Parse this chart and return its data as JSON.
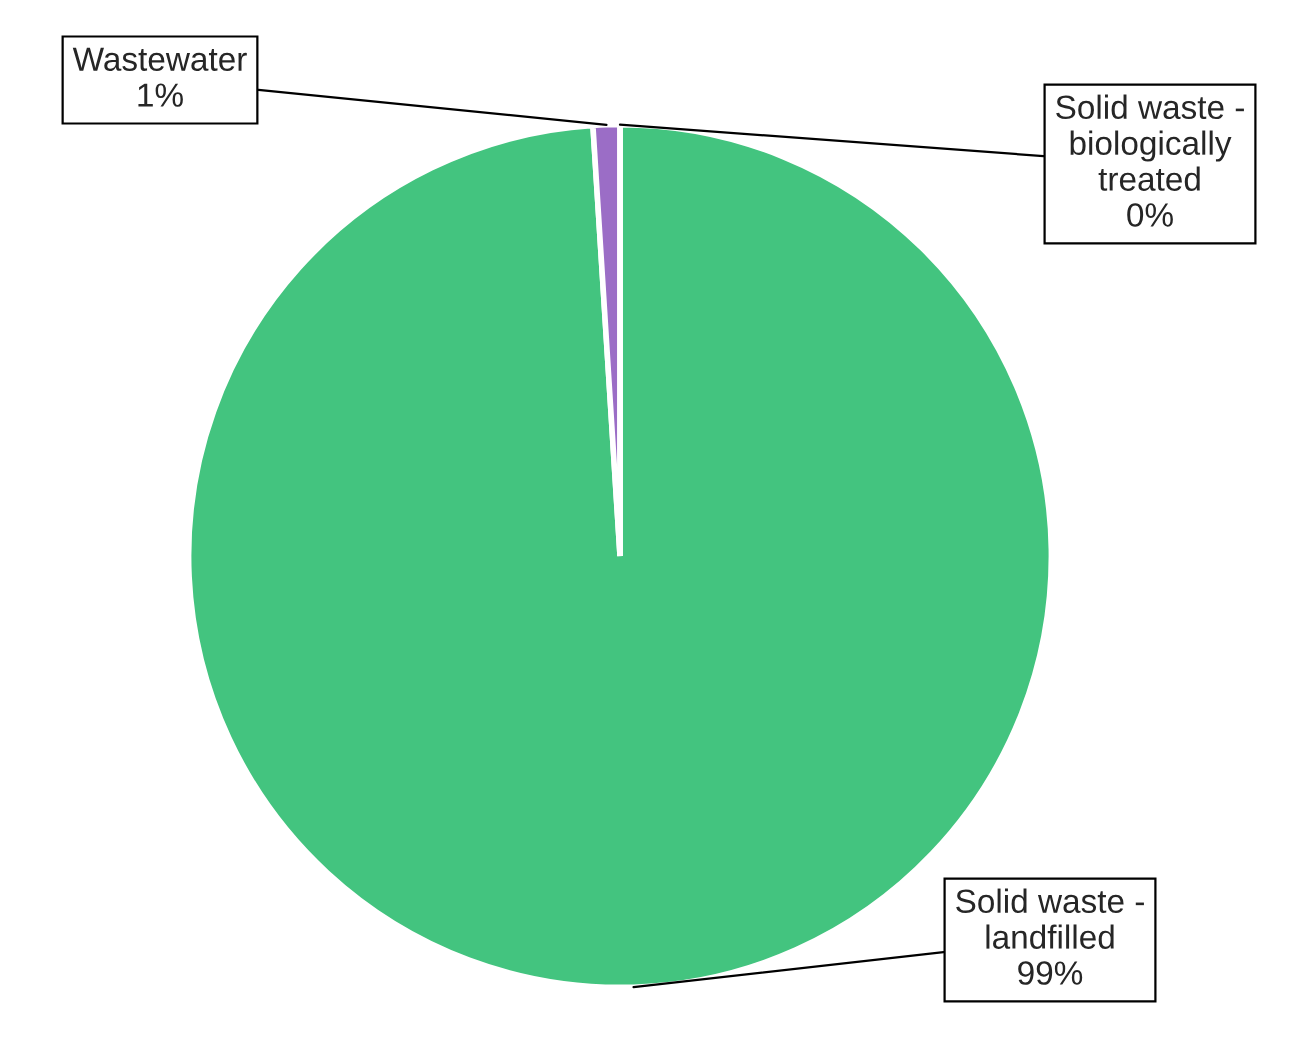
{
  "chart_data": {
    "type": "pie",
    "categories": [
      "Solid waste -\nlandfilled",
      "Wastewater",
      "Solid waste -\nbiologically\ntreated"
    ],
    "values": [
      99,
      1,
      0
    ],
    "value_labels": [
      "99%",
      "1%",
      "0%"
    ],
    "colors": [
      "#43c47f",
      "#9b6dc6",
      "#5b9bd5"
    ]
  }
}
